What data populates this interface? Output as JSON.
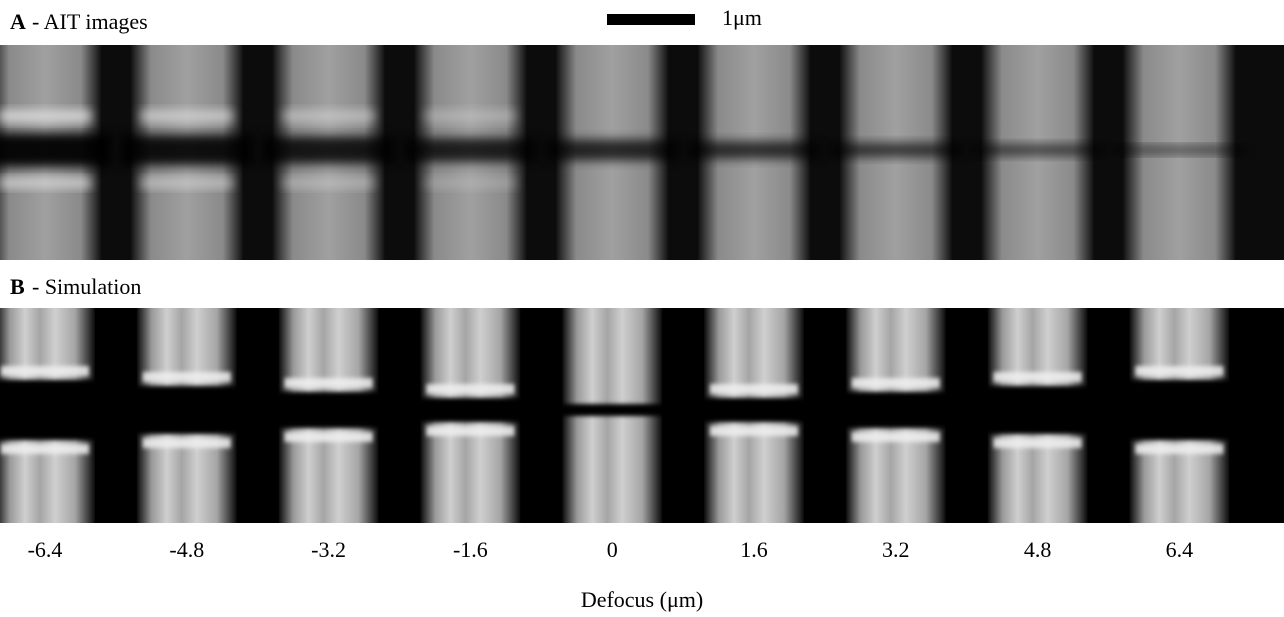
{
  "panel_a": {
    "letter": "A",
    "caption": "- AIT images"
  },
  "scale_bar": {
    "label": "1μm"
  },
  "panel_b": {
    "letter": "B",
    "caption": "- Simulation"
  },
  "defocus_labels": [
    "-6.4",
    "-4.8",
    "-3.2",
    "-1.6",
    "0",
    "1.6",
    "3.2",
    "4.8",
    "6.4"
  ],
  "axis_title": "Defocus (μm)"
}
